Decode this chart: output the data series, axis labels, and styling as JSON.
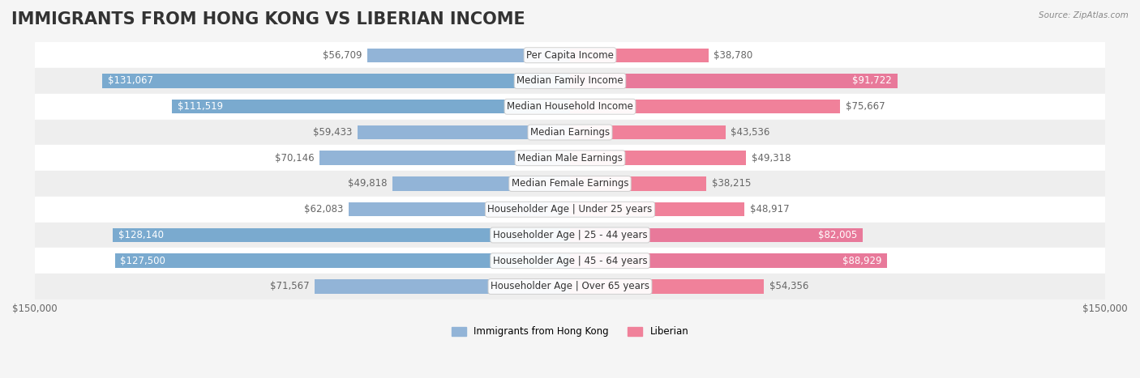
{
  "title": "IMMIGRANTS FROM HONG KONG VS LIBERIAN INCOME",
  "source": "Source: ZipAtlas.com",
  "categories": [
    "Per Capita Income",
    "Median Family Income",
    "Median Household Income",
    "Median Earnings",
    "Median Male Earnings",
    "Median Female Earnings",
    "Householder Age | Under 25 years",
    "Householder Age | 25 - 44 years",
    "Householder Age | 45 - 64 years",
    "Householder Age | Over 65 years"
  ],
  "hk_values": [
    56709,
    131067,
    111519,
    59433,
    70146,
    49818,
    62083,
    128140,
    127500,
    71567
  ],
  "lib_values": [
    38780,
    91722,
    75667,
    43536,
    49318,
    38215,
    48917,
    82005,
    88929,
    54356
  ],
  "hk_labels": [
    "$56,709",
    "$131,067",
    "$111,519",
    "$59,433",
    "$70,146",
    "$49,818",
    "$62,083",
    "$128,140",
    "$127,500",
    "$71,567"
  ],
  "lib_labels": [
    "$38,780",
    "$91,722",
    "$75,667",
    "$43,536",
    "$49,318",
    "$38,215",
    "$48,917",
    "$82,005",
    "$88,929",
    "$54,356"
  ],
  "hk_color": "#92b4d7",
  "lib_color": "#f0819a",
  "hk_color_dark": "#6a9ec8",
  "lib_color_dark": "#e85c82",
  "hk_label_color_dark": "#5a7fa0",
  "lib_label_color_dark": "#c04070",
  "max_val": 150000,
  "legend_hk": "Immigrants from Hong Kong",
  "legend_lib": "Liberian",
  "bar_height": 0.55,
  "bg_color": "#f5f5f5",
  "row_bg_even": "#ffffff",
  "row_bg_odd": "#eeeeee",
  "title_fontsize": 15,
  "label_fontsize": 8.5,
  "category_fontsize": 8.5,
  "axis_fontsize": 8.5
}
